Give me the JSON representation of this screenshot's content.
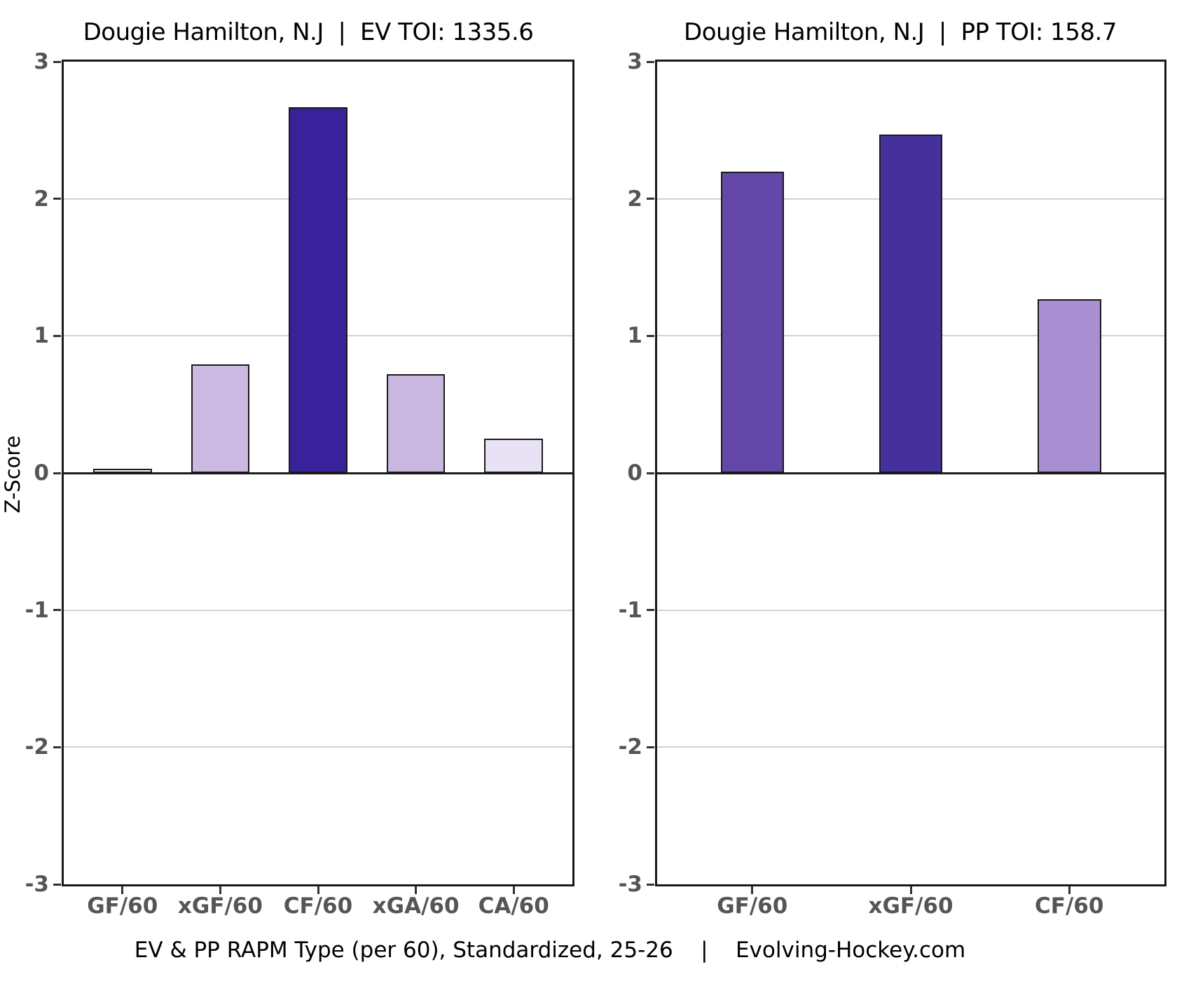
{
  "figure": {
    "background": "#ffffff",
    "ylabel": "Z-Score",
    "caption": "EV & PP RAPM Type (per 60), Standardized, 25-26    |    Evolving-Hockey.com"
  },
  "style": {
    "bar_edge_color": "#1a1a1a",
    "grid_color": "#d2d2d2",
    "zero_line_color": "#1a1a1a",
    "panel_border_color": "#1a1a1a",
    "tick_label_color": "#555555",
    "title_color": "#000000"
  },
  "chart_data": [
    {
      "type": "bar",
      "title": "Dougie Hamilton, N.J  |  EV TOI: 1335.6",
      "player": "Dougie Hamilton",
      "team": "N.J",
      "strength": "EV",
      "toi": 1335.6,
      "categories": [
        "GF/60",
        "xGF/60",
        "CF/60",
        "xGA/60",
        "CA/60"
      ],
      "values": [
        0.03,
        0.79,
        2.67,
        0.72,
        0.25
      ],
      "bar_colors": [
        "#fefefe",
        "#cbb9e1",
        "#39219b",
        "#c9b7e0",
        "#e9e2f4"
      ],
      "xlabel": "",
      "ylabel": "Z-Score",
      "ylim": [
        -3,
        3
      ],
      "yticks": [
        3,
        2,
        1,
        0,
        -1,
        -2,
        -3
      ],
      "grid": "horizontal-major",
      "legend": "none",
      "bar_rel_width": 0.6
    },
    {
      "type": "bar",
      "title": "Dougie Hamilton, N.J  |  PP TOI: 158.7",
      "player": "Dougie Hamilton",
      "team": "N.J",
      "strength": "PP",
      "toi": 158.7,
      "categories": [
        "GF/60",
        "xGF/60",
        "CF/60"
      ],
      "values": [
        2.2,
        2.47,
        1.27
      ],
      "bar_colors": [
        "#6348aa",
        "#46309c",
        "#a78fd2"
      ],
      "xlabel": "",
      "ylabel": "",
      "ylim": [
        -3,
        3
      ],
      "yticks": [
        3,
        2,
        1,
        0,
        -1,
        -2,
        -3
      ],
      "grid": "horizontal-major",
      "legend": "none",
      "bar_rel_width": 0.4
    }
  ]
}
